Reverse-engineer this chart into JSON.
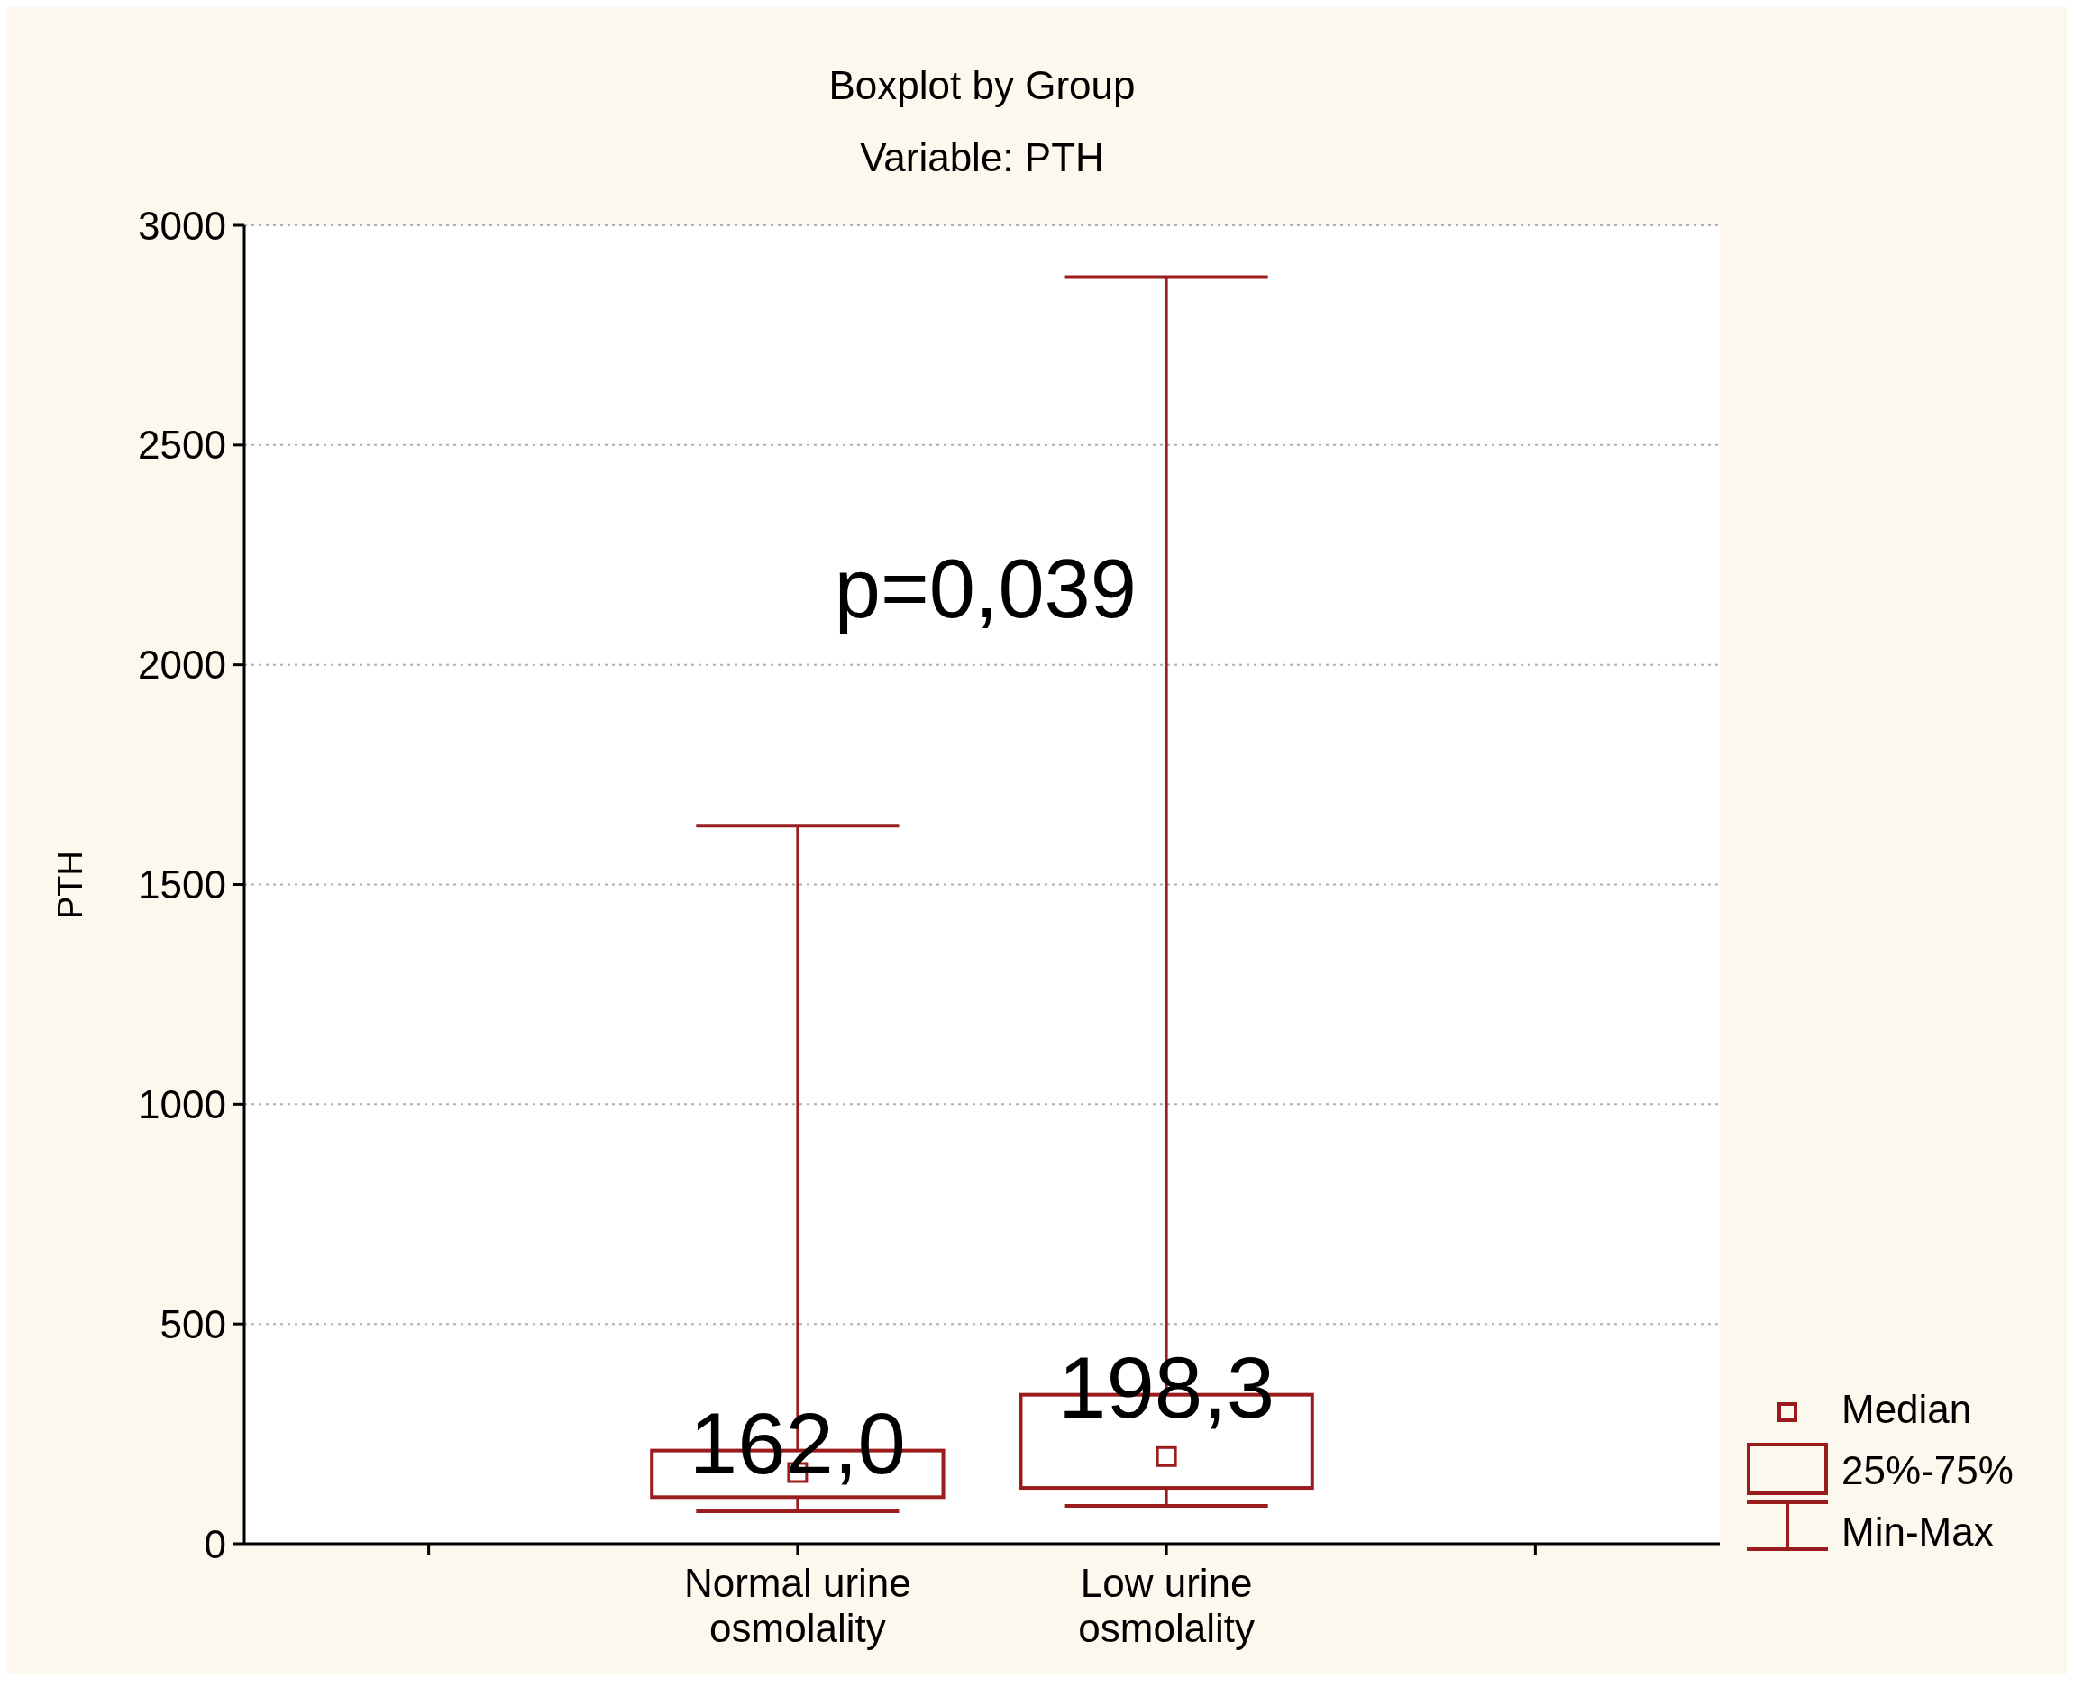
{
  "chart_data": {
    "type": "box",
    "title": "Boxplot by Group",
    "subtitle": "Variable: PTH",
    "ylabel": "PTH",
    "categories": [
      "Normal urine osmolality",
      "Low urine osmolality"
    ],
    "color": "#9b1c1c",
    "boxes": [
      {
        "low": 74,
        "q1": 106,
        "median": 162,
        "q3": 212,
        "high": 1634
      },
      {
        "low": 86,
        "q1": 127,
        "median": 198.3,
        "q3": 339,
        "high": 2882
      }
    ],
    "ylim": [
      0,
      3000
    ],
    "yticks": [
      0,
      500,
      1000,
      1500,
      2000,
      2500,
      3000
    ],
    "grid": "y",
    "marker": "square",
    "annotations": [
      "p=0,039",
      "162,0",
      "198,3",
      "Median",
      "25%-75%",
      "Min-Max"
    ]
  }
}
